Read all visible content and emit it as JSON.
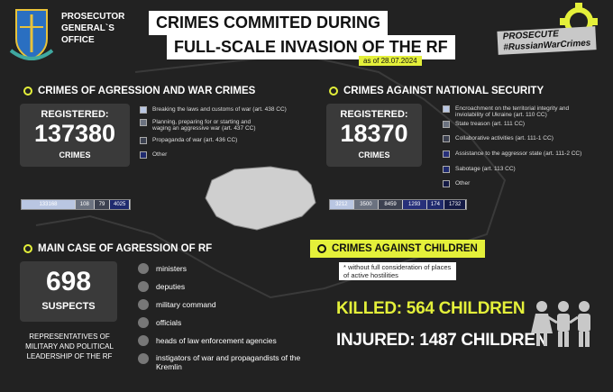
{
  "header": {
    "org": [
      "PROSECUTOR",
      "GENERAL`S",
      "OFFICE"
    ],
    "title_line1": "CRIMES COMMITED DURING",
    "title_line2": "FULL-SCALE INVASION OF THE RF",
    "date": "as of 28.07.2024",
    "campaign": [
      "PROSECUTE",
      "#RussianWarCrimes"
    ]
  },
  "aggression": {
    "title": "CRIMES OF AGRESSION AND WAR CRIMES",
    "registered_label": "REGISTERED:",
    "count": "137380",
    "unit": "CRIMES",
    "legend": [
      {
        "label": "Breaking the laws and customs of war (art. 438  CC)",
        "color": "#b9c6e2"
      },
      {
        "label": "Planning, preparing for or starting and waging an aggressive war (art. 437 CC)",
        "color": "#6b7280"
      },
      {
        "label": "Propaganda of war (art. 436 CC)",
        "color": "#3c4150"
      },
      {
        "label": "Other",
        "color": "#1f2a6e"
      }
    ],
    "bar": [
      "133168",
      "108",
      "79",
      "4025"
    ]
  },
  "security": {
    "title": "CRIMES AGAINST NATIONAL SECURITY",
    "registered_label": "REGISTERED:",
    "count": "18370",
    "unit": "CRIMES",
    "legend": [
      {
        "label": "Encroachment on the territorial integrity and inviolability of Ukraine (art. 110 CC)",
        "color": "#b9c6e2"
      },
      {
        "label": "State treason (art. 111 CC)",
        "color": "#6b7280"
      },
      {
        "label": "Collaborative activities (art. 111-1 CC)",
        "color": "#3c4150"
      },
      {
        "label": "Assistance to the aggressor state (art. 111-2 CC)",
        "color": "#27307a"
      },
      {
        "label": "Sabotage (art. 113 CC)",
        "color": "#1f2a6e"
      },
      {
        "label": "Other",
        "color": "#141a45"
      }
    ],
    "bar": [
      "3212",
      "3500",
      "8459",
      "1293",
      "174",
      "1732"
    ]
  },
  "main_case": {
    "title": "MAIN CASE OF AGRESSION OF RF",
    "count": "698",
    "unit": "SUSPECTS",
    "caption": "REPRESENTATIVES OF MILITARY AND POLITICAL LEADERSHIP OF THE RF",
    "items": [
      "ministers",
      "deputies",
      "military command",
      "officials",
      "heads of law enforcement agencies",
      "instigators of war and propagandists of the Kremlin"
    ]
  },
  "children": {
    "title": "CRIMES AGAINST CHILDREN",
    "note": "* without full consideration of places of active hostilities",
    "killed": "KILLED: 564  CHILDREN",
    "injured": "INJURED: 1487  CHILDREN"
  },
  "colors": {
    "accent": "#e4f03a",
    "background": "#222222"
  }
}
